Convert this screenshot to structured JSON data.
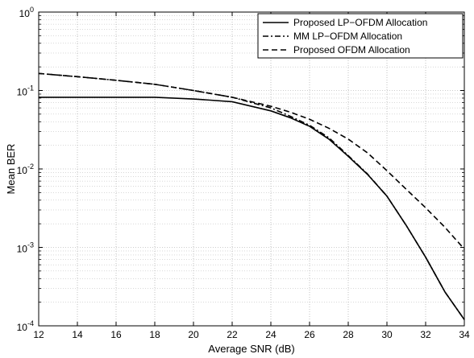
{
  "chart_data": {
    "type": "line",
    "title": "",
    "xlabel": "Average SNR (dB)",
    "ylabel": "Mean BER",
    "xlim": [
      12,
      34
    ],
    "ylim": [
      0.0001,
      1
    ],
    "yscale": "log",
    "grid": true,
    "grid_style": "dotted",
    "legend_position": "top-right",
    "x_ticks": [
      "12",
      "14",
      "16",
      "18",
      "20",
      "22",
      "24",
      "26",
      "28",
      "30",
      "32",
      "34"
    ],
    "y_ticks": [
      {
        "base": "10",
        "exp": "0"
      },
      {
        "base": "10",
        "exp": "-1"
      },
      {
        "base": "10",
        "exp": "-2"
      },
      {
        "base": "10",
        "exp": "-3"
      },
      {
        "base": "10",
        "exp": "-4"
      }
    ],
    "series": [
      {
        "name": "Proposed LP−OFDM Allocation",
        "style": "solid",
        "color": "#000000",
        "x": [
          12,
          14,
          16,
          18,
          20,
          22,
          24,
          25,
          26,
          27,
          28,
          29,
          30,
          31,
          32,
          33,
          34
        ],
        "y": [
          0.082,
          0.082,
          0.082,
          0.082,
          0.078,
          0.072,
          0.055,
          0.045,
          0.035,
          0.024,
          0.0145,
          0.0085,
          0.0045,
          0.0019,
          0.00075,
          0.00027,
          0.00012
        ]
      },
      {
        "name": "MM LP−OFDM Allocation",
        "style": "dashdot",
        "color": "#000000",
        "x": [
          12,
          14,
          16,
          18,
          20,
          22,
          24,
          25,
          26,
          27,
          28,
          29,
          30,
          31,
          32,
          33,
          34
        ],
        "y": [
          0.165,
          0.15,
          0.135,
          0.12,
          0.1,
          0.082,
          0.06,
          0.047,
          0.036,
          0.025,
          0.0148,
          0.0086,
          0.0045,
          0.0019,
          0.00075,
          0.00027,
          0.00012
        ]
      },
      {
        "name": "Proposed OFDM Allocation",
        "style": "dashed",
        "color": "#000000",
        "x": [
          12,
          14,
          16,
          18,
          20,
          22,
          24,
          25,
          26,
          27,
          28,
          29,
          30,
          31,
          32,
          33,
          34
        ],
        "y": [
          0.165,
          0.15,
          0.135,
          0.12,
          0.1,
          0.082,
          0.063,
          0.053,
          0.043,
          0.033,
          0.024,
          0.016,
          0.0095,
          0.0055,
          0.0032,
          0.0018,
          0.00095
        ]
      }
    ]
  }
}
